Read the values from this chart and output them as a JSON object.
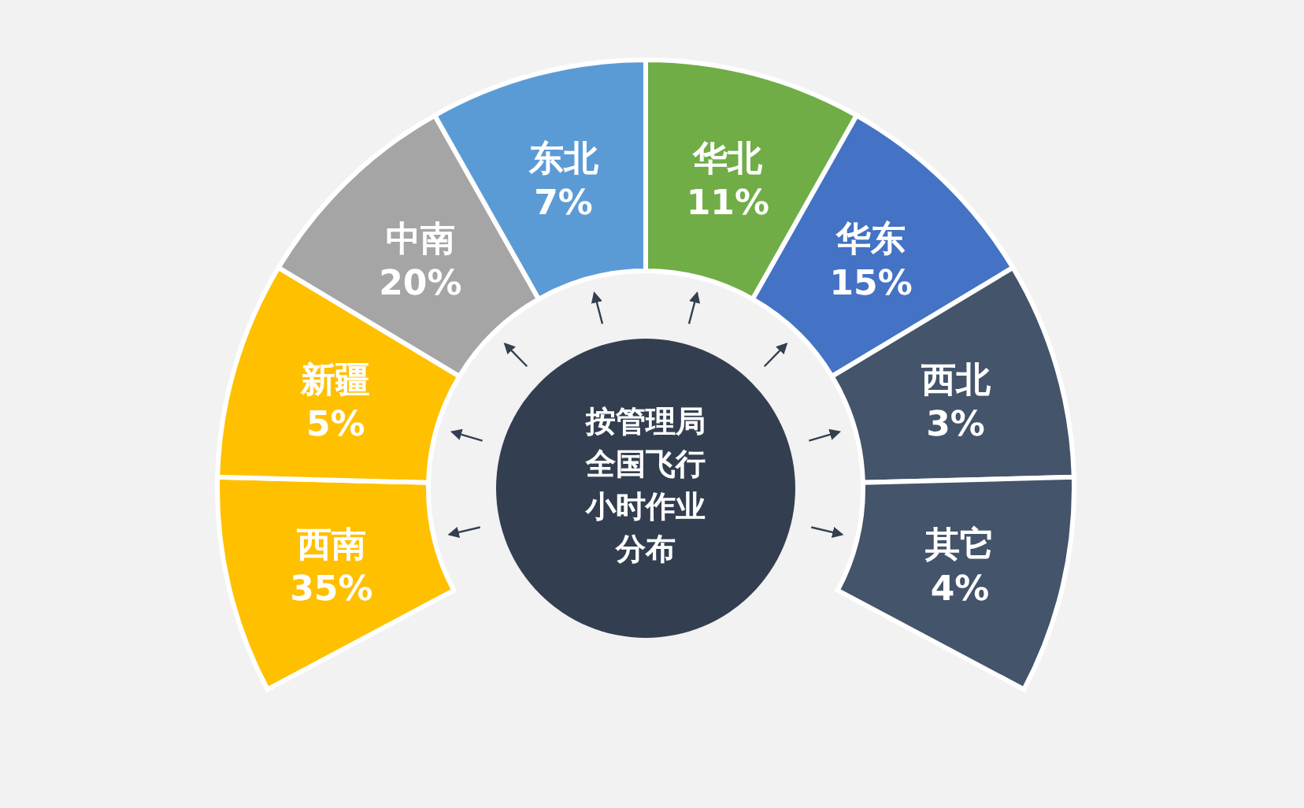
{
  "chart_data": {
    "type": "other",
    "title": "按管理局全国飞行小时作业分布",
    "categories": [
      "西南",
      "新疆",
      "中南",
      "东北",
      "华北",
      "华东",
      "西北",
      "其它"
    ],
    "values": [
      35,
      5,
      20,
      7,
      11,
      15,
      3,
      4
    ],
    "value_labels": [
      "35%",
      "5%",
      "20%",
      "7%",
      "11%",
      "15%",
      "3%",
      "4%"
    ],
    "colors": [
      "#ffc000",
      "#ffc000",
      "#a5a5a5",
      "#5b9bd5",
      "#70ad47",
      "#4472c4",
      "#44546a",
      "#44546a"
    ]
  }
}
